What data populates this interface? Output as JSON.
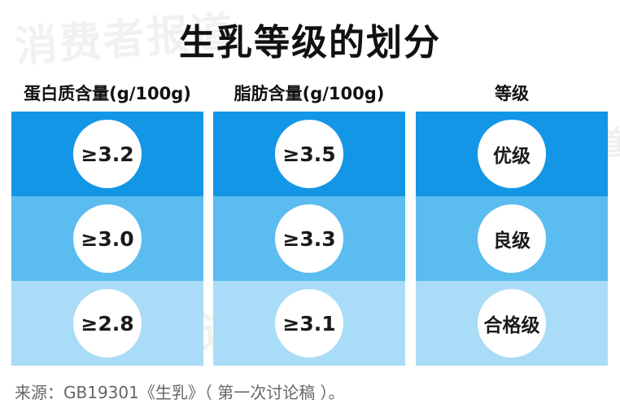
{
  "title": "生乳等级的划分",
  "watermark": "消费者报道",
  "columns": [
    {
      "header": "蛋白质含量(g/100g)",
      "values": [
        "≥3.2",
        "≥3.0",
        "≥2.8"
      ]
    },
    {
      "header": "脂肪含量(g/100g)",
      "values": [
        "≥3.5",
        "≥3.3",
        "≥3.1"
      ]
    },
    {
      "header": "等级",
      "values": [
        "优级",
        "良级",
        "合格级"
      ]
    }
  ],
  "row_colors": [
    "#1496e6",
    "#5bbcf0",
    "#a9dcf6"
  ],
  "source": "来源：GB19301《生乳》（ 第一次讨论稿 ）。"
}
